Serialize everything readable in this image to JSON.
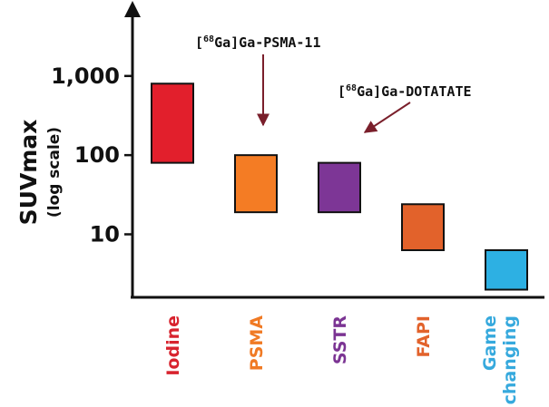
{
  "chart_data": {
    "type": "bar",
    "subtype": "floating-range",
    "ylabel": "SUVmax",
    "ylabel_sub": "(log scale)",
    "yscale": "log",
    "ylim": [
      1.6,
      7000
    ],
    "yticks": [
      {
        "value": 10,
        "label": "10"
      },
      {
        "value": 100,
        "label": "100"
      },
      {
        "value": 1000,
        "label": "1,000"
      }
    ],
    "categories": [
      "Iodine",
      "PSMA",
      "SSTR",
      "FAPI",
      "Game changing"
    ],
    "series": [
      {
        "ranges": [
          [
            80,
            800
          ],
          [
            19,
            100
          ],
          [
            19,
            80
          ],
          [
            6.3,
            24
          ],
          [
            2,
            6.3
          ]
        ],
        "colors": [
          "#e21f2c",
          "#f47c24",
          "#7d3696",
          "#e2622b",
          "#2db0e3"
        ]
      }
    ],
    "label_colors": [
      "#d8232e",
      "#f07a24",
      "#7b3493",
      "#e2622b",
      "#36a9dd"
    ],
    "annotations": [
      {
        "prefix": "[",
        "sup": "68",
        "text": "Ga]Ga-PSMA-11",
        "target_category": "PSMA"
      },
      {
        "prefix": "[",
        "sup": "68",
        "text": "Ga]Ga-DOTATATE",
        "target_category": "SSTR"
      }
    ],
    "arrow_color": "#7a1f2b",
    "grid": false,
    "legend": "none"
  }
}
